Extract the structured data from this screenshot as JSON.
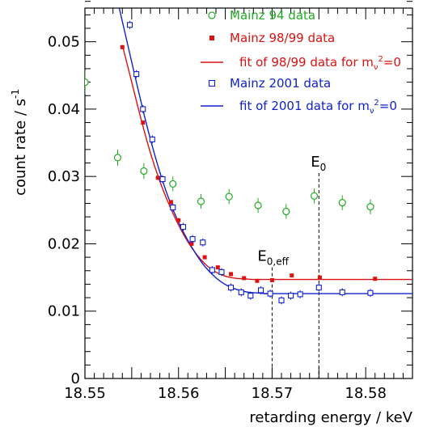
{
  "chart_data": {
    "type": "scatter",
    "title": "",
    "xlabel": "retarding energy  / keV",
    "ylabel_parts": {
      "text": "count rate  / s",
      "sup": "-1"
    },
    "xlim": [
      18.55,
      18.585
    ],
    "ylim": [
      0,
      0.055
    ],
    "x_ticks": [
      18.55,
      18.56,
      18.57,
      18.58
    ],
    "x_tick_labels": [
      "18.55",
      "18.56",
      "18.57",
      "18.58"
    ],
    "y_ticks": [
      0,
      0.01,
      0.02,
      0.03,
      0.04,
      0.05
    ],
    "y_tick_labels": [
      "0",
      "0.01",
      "0.02",
      "0.03",
      "0.04",
      "0.05"
    ],
    "grid": false,
    "legend_placement": "top-right",
    "annotations": [
      {
        "id": "e0",
        "main": "E",
        "sub": "0",
        "x": 18.575
      },
      {
        "id": "e0eff",
        "main": "E",
        "sub": "0,eff",
        "x": 18.57
      }
    ],
    "series": [
      {
        "name": "Mainz 94 data",
        "marker": "circle-open",
        "color": "#22aa22",
        "x": [
          18.55,
          18.5535,
          18.5563,
          18.5594,
          18.5624,
          18.5654,
          18.5685,
          18.5715,
          18.5745,
          18.5775,
          18.5805
        ],
        "y": [
          0.044,
          0.0328,
          0.0308,
          0.0289,
          0.0263,
          0.027,
          0.0257,
          0.0248,
          0.0271,
          0.0261,
          0.0255
        ],
        "err": [
          0.0018,
          0.0012,
          0.0012,
          0.0011,
          0.0011,
          0.0011,
          0.0011,
          0.0011,
          0.0011,
          0.0011,
          0.0011
        ]
      },
      {
        "name": "Mainz 98/99 data",
        "marker": "square-filled",
        "color": "#dd1111",
        "x": [
          18.554,
          18.5562,
          18.5578,
          18.5592,
          18.56,
          18.5614,
          18.5628,
          18.5642,
          18.5656,
          18.567,
          18.5684,
          18.57,
          18.5721,
          18.5751,
          18.581
        ],
        "y": [
          0.0492,
          0.038,
          0.0298,
          0.0262,
          0.0235,
          0.02,
          0.018,
          0.0165,
          0.0155,
          0.0149,
          0.0145,
          0.0146,
          0.0153,
          0.015,
          0.0148
        ]
      },
      {
        "name": "Mainz 2001 data",
        "marker": "square-open",
        "color": "#1122cc",
        "x": [
          18.5548,
          18.5555,
          18.5562,
          18.5572,
          18.5583,
          18.5594,
          18.5605,
          18.5615,
          18.5626,
          18.5636,
          18.5646,
          18.5656,
          18.5667,
          18.5677,
          18.5688,
          18.5698,
          18.571,
          18.572,
          18.573,
          18.575,
          18.5775,
          18.5805
        ],
        "y": [
          0.0525,
          0.0452,
          0.04,
          0.0355,
          0.0296,
          0.0254,
          0.0225,
          0.0207,
          0.0202,
          0.0161,
          0.0158,
          0.0135,
          0.0128,
          0.0123,
          0.0131,
          0.0126,
          0.0116,
          0.0123,
          0.0125,
          0.0135,
          0.0128,
          0.0127
        ],
        "err": [
          0.0006,
          0.0006,
          0.0006,
          0.0006,
          0.0006,
          0.0006,
          0.0006,
          0.0006,
          0.0006,
          0.0006,
          0.0006,
          0.0006,
          0.0006,
          0.0006,
          0.0006,
          0.0006,
          0.0006,
          0.0006,
          0.0006,
          0.0006,
          0.0006,
          0.0006
        ]
      }
    ],
    "fits": [
      {
        "name_parts": {
          "pre": "fit of 98/99 data for m",
          "sub": "ν",
          "sup": "2",
          "post": "=0"
        },
        "color": "#dd1111",
        "x": [
          18.554,
          18.555,
          18.556,
          18.557,
          18.558,
          18.559,
          18.56,
          18.561,
          18.562,
          18.563,
          18.564,
          18.565,
          18.566,
          18.567,
          18.568,
          18.569,
          18.57,
          18.585
        ],
        "y": [
          0.0495,
          0.044,
          0.0385,
          0.0335,
          0.0293,
          0.0258,
          0.0228,
          0.0203,
          0.0183,
          0.0168,
          0.0158,
          0.0152,
          0.0149,
          0.0148,
          0.0147,
          0.0147,
          0.0147,
          0.0147
        ]
      },
      {
        "name_parts": {
          "pre": "fit of 2001 data for m",
          "sub": "ν",
          "sup": "2",
          "post": "=0"
        },
        "color": "#1122cc",
        "x": [
          18.5535,
          18.5545,
          18.5555,
          18.5565,
          18.5575,
          18.5585,
          18.5595,
          18.5605,
          18.5615,
          18.5625,
          18.5635,
          18.5645,
          18.5655,
          18.5665,
          18.5675,
          18.5685,
          18.5695,
          18.5705,
          18.585
        ],
        "y": [
          0.056,
          0.05,
          0.044,
          0.0382,
          0.033,
          0.0285,
          0.0248,
          0.0218,
          0.0193,
          0.0172,
          0.0156,
          0.0144,
          0.0136,
          0.0131,
          0.0128,
          0.0127,
          0.0126,
          0.0126,
          0.0126
        ]
      }
    ]
  }
}
